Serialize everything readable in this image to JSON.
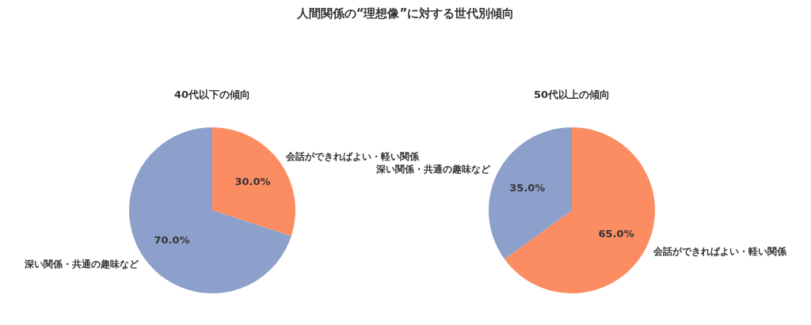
{
  "chart_data": [
    {
      "type": "pie",
      "title": "人間関係の“理想像”に対する世代別傾向",
      "subtitle": "40代以下の傾向",
      "categories": [
        "会話ができればよい・軽い関係",
        "深い関係・共通の趣味など"
      ],
      "values": [
        30.0,
        70.0
      ],
      "value_labels": [
        "30.0%",
        "70.0%"
      ],
      "colors": [
        "#fc8d62",
        "#8da0cb"
      ]
    },
    {
      "type": "pie",
      "subtitle": "50代以上の傾向",
      "categories": [
        "会話ができればよい・軽い関係",
        "深い関係・共通の趣味など"
      ],
      "values": [
        65.0,
        35.0
      ],
      "value_labels": [
        "65.0%",
        "35.0%"
      ],
      "colors": [
        "#fc8d62",
        "#8da0cb"
      ]
    }
  ]
}
